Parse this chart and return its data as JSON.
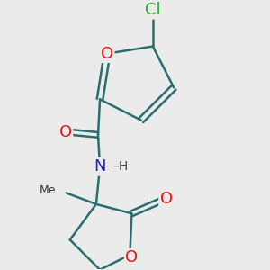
{
  "background_color": "#ebebeb",
  "bond_color": "#2a6e6e",
  "bond_width": 1.8,
  "atom_colors": {
    "O": "#ee1111",
    "N": "#2222cc",
    "Cl": "#22aa22",
    "C": "#111111",
    "H": "#444444"
  },
  "font_size": 13
}
